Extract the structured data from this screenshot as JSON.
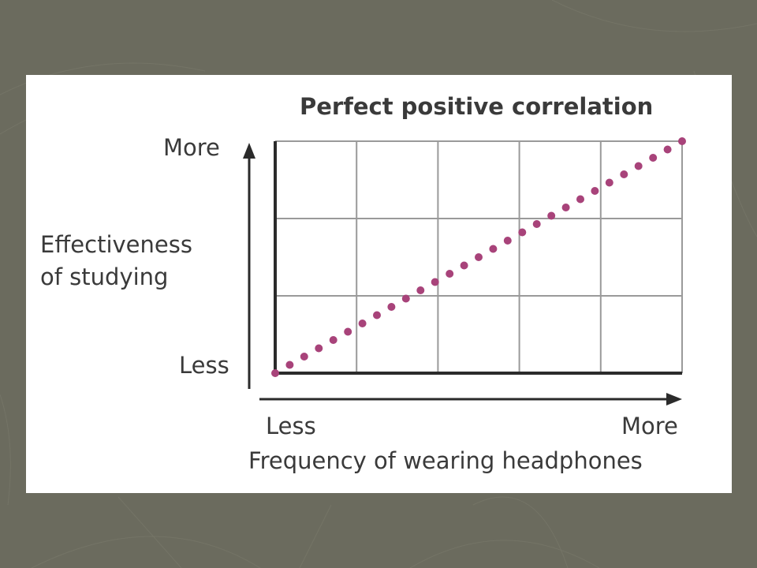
{
  "slide": {
    "background_color": "#6b6b5e",
    "card_color": "#ffffff"
  },
  "chart_data": {
    "type": "scatter",
    "title": "Perfect positive correlation",
    "xlabel": "Frequency of wearing headphones",
    "ylabel_lines": [
      "Effectiveness",
      "of studying"
    ],
    "x_tick_labels": {
      "low": "Less",
      "high": "More"
    },
    "y_tick_labels": {
      "low": "Less",
      "high": "More"
    },
    "xlim": [
      0,
      1
    ],
    "ylim": [
      0,
      1
    ],
    "grid": true,
    "grid_divisions": {
      "x": 5,
      "y": 3
    },
    "point_color": "#a8437a",
    "series": [
      {
        "x": [
          0.0,
          0.0357,
          0.0714,
          0.1071,
          0.1429,
          0.1786,
          0.2143,
          0.25,
          0.2857,
          0.3214,
          0.3571,
          0.3929,
          0.4286,
          0.4643,
          0.5,
          0.5357,
          0.5714,
          0.6071,
          0.6429,
          0.6786,
          0.7143,
          0.75,
          0.7857,
          0.8214,
          0.8571,
          0.8929,
          0.9286,
          0.9643,
          1.0
        ],
        "y": [
          0.0,
          0.0357,
          0.0714,
          0.1071,
          0.1429,
          0.1786,
          0.2143,
          0.25,
          0.2857,
          0.3214,
          0.3571,
          0.3929,
          0.4286,
          0.4643,
          0.5,
          0.5357,
          0.5714,
          0.6071,
          0.6429,
          0.6786,
          0.7143,
          0.75,
          0.7857,
          0.8214,
          0.8571,
          0.8929,
          0.9286,
          0.9643,
          1.0
        ]
      }
    ]
  }
}
